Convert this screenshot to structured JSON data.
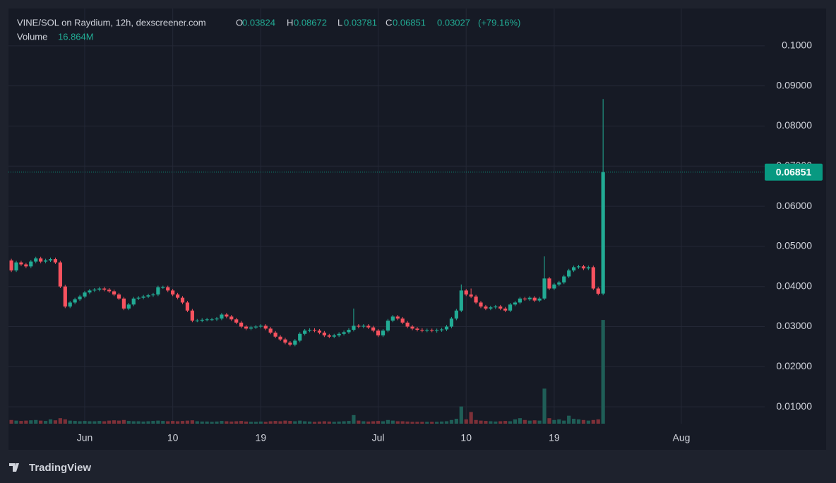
{
  "chart_data": {
    "type": "candlestick",
    "title": "VINE/SOL on Raydium, 12h, dexscreener.com",
    "ohlc_labels": {
      "open": "O",
      "high": "H",
      "low": "L",
      "close": "C"
    },
    "change": 0.03027,
    "change_pct": {
      "value": 79.16,
      "label": "(+79.16%)"
    },
    "up_color": "#22ab94",
    "down_color": "#f7525f",
    "categories": [
      null,
      null,
      null,
      null,
      null,
      null,
      null,
      null,
      null,
      null,
      null,
      null,
      null,
      null,
      null,
      "Jun",
      null,
      null,
      null,
      null,
      null,
      null,
      null,
      null,
      null,
      null,
      null,
      null,
      null,
      null,
      null,
      null,
      null,
      "10",
      null,
      null,
      null,
      null,
      null,
      null,
      null,
      null,
      null,
      null,
      null,
      null,
      null,
      null,
      null,
      null,
      null,
      "19",
      null,
      null,
      null,
      null,
      null,
      null,
      null,
      null,
      null,
      null,
      null,
      null,
      null,
      null,
      null,
      null,
      null,
      null,
      null,
      null,
      null,
      null,
      null,
      "Jul",
      null,
      null,
      null,
      null,
      null,
      null,
      null,
      null,
      null,
      null,
      null,
      null,
      null,
      null,
      null,
      null,
      null,
      "10",
      null,
      null,
      null,
      null,
      null,
      null,
      null,
      null,
      null,
      null,
      null,
      null,
      null,
      null,
      null,
      null,
      null,
      "19",
      null,
      null,
      null,
      null,
      null,
      null,
      null,
      null,
      null,
      null,
      null,
      null,
      null,
      null,
      null,
      null,
      null,
      null,
      null,
      null,
      null,
      null,
      null,
      null,
      null,
      "Aug"
    ],
    "open": [
      0.0465,
      0.044,
      0.046,
      0.0455,
      0.045,
      0.0462,
      0.047,
      0.0462,
      0.0465,
      0.0468,
      0.046,
      0.04,
      0.035,
      0.036,
      0.0368,
      0.0375,
      0.0385,
      0.039,
      0.0392,
      0.0395,
      0.0392,
      0.0388,
      0.038,
      0.037,
      0.0345,
      0.0355,
      0.037,
      0.0372,
      0.0375,
      0.0378,
      0.038,
      0.0398,
      0.0398,
      0.039,
      0.038,
      0.0372,
      0.036,
      0.034,
      0.0315,
      0.0315,
      0.0317,
      0.0318,
      0.0318,
      0.032,
      0.033,
      0.0325,
      0.0318,
      0.031,
      0.03,
      0.0295,
      0.0298,
      0.03,
      0.0302,
      0.0295,
      0.0285,
      0.0275,
      0.0268,
      0.026,
      0.0255,
      0.0265,
      0.0282,
      0.029,
      0.0292,
      0.029,
      0.0285,
      0.0278,
      0.0275,
      0.0278,
      0.0282,
      0.0286,
      0.0292,
      0.0302,
      0.03,
      0.0302,
      0.0298,
      0.029,
      0.0278,
      0.029,
      0.0315,
      0.0325,
      0.032,
      0.031,
      0.03,
      0.0295,
      0.0292,
      0.029,
      0.0291,
      0.029,
      0.0291,
      0.0293,
      0.03,
      0.032,
      0.034,
      0.039,
      0.038,
      0.0375,
      0.036,
      0.035,
      0.0345,
      0.0348,
      0.035,
      0.0345,
      0.034,
      0.0355,
      0.036,
      0.037,
      0.0368,
      0.0372,
      0.0365,
      0.037,
      0.042,
      0.0395,
      0.0405,
      0.041,
      0.0425,
      0.044,
      0.0448,
      0.045,
      0.0445,
      0.0448,
      0.0395,
      0.03824,
      null,
      null,
      null,
      null,
      null,
      null,
      null,
      null,
      null,
      null,
      null,
      null,
      null,
      null,
      null,
      null
    ],
    "high": [
      0.0469,
      0.0464,
      0.0464,
      0.0459,
      0.0466,
      0.0474,
      0.0474,
      0.0469,
      0.0472,
      0.0472,
      0.0464,
      0.0404,
      0.0364,
      0.0372,
      0.0379,
      0.0389,
      0.0394,
      0.0396,
      0.0399,
      0.0399,
      0.0396,
      0.0392,
      0.0384,
      0.0374,
      0.0359,
      0.0374,
      0.0376,
      0.0379,
      0.0382,
      0.0384,
      0.0402,
      0.0402,
      0.0402,
      0.0394,
      0.0384,
      0.0376,
      0.0364,
      0.0344,
      0.0319,
      0.0321,
      0.0322,
      0.0322,
      0.0324,
      0.0334,
      0.0334,
      0.0329,
      0.0322,
      0.0314,
      0.0304,
      0.0302,
      0.0304,
      0.0306,
      0.0306,
      0.0299,
      0.0289,
      0.0279,
      0.0272,
      0.0264,
      0.0269,
      0.0286,
      0.0294,
      0.0296,
      0.0296,
      0.0294,
      0.0289,
      0.0282,
      0.0282,
      0.0286,
      0.029,
      0.0296,
      0.0345,
      0.0306,
      0.0306,
      0.0306,
      0.0302,
      0.0294,
      0.0294,
      0.0319,
      0.0329,
      0.0329,
      0.0324,
      0.0314,
      0.0304,
      0.0299,
      0.0296,
      0.0295,
      0.0295,
      0.0295,
      0.0297,
      0.0304,
      0.0324,
      0.0344,
      0.0405,
      0.0394,
      0.0395,
      0.0379,
      0.0364,
      0.0354,
      0.0352,
      0.0354,
      0.0354,
      0.0349,
      0.0359,
      0.0364,
      0.0374,
      0.0374,
      0.0376,
      0.0376,
      0.0374,
      0.0475,
      0.0424,
      0.0409,
      0.0414,
      0.0429,
      0.0444,
      0.0452,
      0.0454,
      0.0454,
      0.0452,
      0.0452,
      0.0399,
      0.08672,
      null,
      null,
      null,
      null,
      null,
      null,
      null,
      null,
      null,
      null,
      null,
      null,
      null,
      null,
      null,
      null
    ],
    "low": [
      0.0436,
      0.0436,
      0.0451,
      0.0446,
      0.0446,
      0.0458,
      0.0458,
      0.0458,
      0.0461,
      0.0456,
      0.0396,
      0.0346,
      0.0346,
      0.0356,
      0.0364,
      0.0371,
      0.0381,
      0.0386,
      0.0388,
      0.0388,
      0.0384,
      0.0376,
      0.0366,
      0.0341,
      0.0341,
      0.0351,
      0.0366,
      0.0368,
      0.0371,
      0.0374,
      0.0376,
      0.0394,
      0.0386,
      0.0376,
      0.0368,
      0.0356,
      0.0336,
      0.0311,
      0.0311,
      0.0311,
      0.0313,
      0.0314,
      0.0314,
      0.0316,
      0.0321,
      0.0314,
      0.0306,
      0.0296,
      0.0291,
      0.0291,
      0.0294,
      0.0296,
      0.0291,
      0.0281,
      0.0271,
      0.0264,
      0.0256,
      0.0251,
      0.0251,
      0.0261,
      0.0278,
      0.0286,
      0.0286,
      0.0281,
      0.0274,
      0.0271,
      0.0271,
      0.0274,
      0.0278,
      0.0282,
      0.0288,
      0.0296,
      0.0296,
      0.0294,
      0.0286,
      0.0274,
      0.0274,
      0.0286,
      0.0311,
      0.0316,
      0.0306,
      0.0296,
      0.0291,
      0.0288,
      0.0286,
      0.0286,
      0.0286,
      0.0285,
      0.0287,
      0.0289,
      0.0296,
      0.0316,
      0.0336,
      0.0376,
      0.0371,
      0.0356,
      0.0346,
      0.0341,
      0.0341,
      0.0344,
      0.0341,
      0.0336,
      0.0336,
      0.0351,
      0.0356,
      0.0364,
      0.0364,
      0.0361,
      0.0361,
      0.0366,
      0.0391,
      0.0391,
      0.0401,
      0.0406,
      0.0421,
      0.0436,
      0.0444,
      0.0441,
      0.0441,
      0.0391,
      0.0378,
      0.03781,
      null,
      null,
      null,
      null,
      null,
      null,
      null,
      null,
      null,
      null,
      null,
      null,
      null,
      null,
      null,
      null
    ],
    "close": [
      0.044,
      0.046,
      0.0455,
      0.045,
      0.0462,
      0.047,
      0.0462,
      0.0465,
      0.0468,
      0.046,
      0.04,
      0.035,
      0.036,
      0.0368,
      0.0375,
      0.0385,
      0.039,
      0.0392,
      0.0395,
      0.0392,
      0.0388,
      0.038,
      0.037,
      0.0345,
      0.0355,
      0.037,
      0.0372,
      0.0375,
      0.0378,
      0.038,
      0.0398,
      0.0398,
      0.039,
      0.038,
      0.0372,
      0.036,
      0.034,
      0.0315,
      0.0315,
      0.0317,
      0.0318,
      0.0318,
      0.032,
      0.033,
      0.0325,
      0.0318,
      0.031,
      0.03,
      0.0295,
      0.0298,
      0.03,
      0.0302,
      0.0295,
      0.0285,
      0.0275,
      0.0268,
      0.026,
      0.0255,
      0.0265,
      0.0282,
      0.029,
      0.0292,
      0.029,
      0.0285,
      0.0278,
      0.0275,
      0.0278,
      0.0282,
      0.0286,
      0.0292,
      0.0302,
      0.03,
      0.0302,
      0.0298,
      0.029,
      0.0278,
      0.029,
      0.0315,
      0.0325,
      0.032,
      0.031,
      0.03,
      0.0295,
      0.0292,
      0.029,
      0.0291,
      0.029,
      0.0291,
      0.0293,
      0.03,
      0.032,
      0.034,
      0.039,
      0.038,
      0.0375,
      0.036,
      0.035,
      0.0345,
      0.0348,
      0.035,
      0.0345,
      0.034,
      0.0355,
      0.036,
      0.037,
      0.0368,
      0.0372,
      0.0365,
      0.037,
      0.042,
      0.0395,
      0.0405,
      0.041,
      0.0425,
      0.044,
      0.0448,
      0.045,
      0.0445,
      0.0448,
      0.0395,
      0.0382,
      0.06851,
      null,
      null,
      null,
      null,
      null,
      null,
      null,
      null,
      null,
      null,
      null,
      null,
      null,
      null,
      null,
      null
    ],
    "volume": {
      "name": "Volume",
      "axis": "y2",
      "last_value_label": "16.864M",
      "up_color": "#1f5e57",
      "down_color": "#7d3038",
      "values": [
        600000,
        500000,
        450000,
        500000,
        550000,
        600000,
        500000,
        450000,
        700000,
        550000,
        900000,
        700000,
        500000,
        450000,
        400000,
        450000,
        400000,
        400000,
        450000,
        400000,
        500000,
        550000,
        500000,
        600000,
        450000,
        400000,
        400000,
        350000,
        400000,
        450000,
        500000,
        450000,
        400000,
        450000,
        400000,
        450000,
        500000,
        550000,
        400000,
        350000,
        350000,
        300000,
        350000,
        450000,
        400000,
        350000,
        400000,
        450000,
        350000,
        300000,
        300000,
        350000,
        300000,
        400000,
        450000,
        400000,
        500000,
        450000,
        400000,
        500000,
        400000,
        350000,
        300000,
        350000,
        400000,
        350000,
        300000,
        350000,
        400000,
        450000,
        1400000,
        500000,
        400000,
        350000,
        400000,
        450000,
        400000,
        600000,
        500000,
        400000,
        400000,
        350000,
        300000,
        300000,
        300000,
        300000,
        300000,
        300000,
        350000,
        400000,
        600000,
        800000,
        2800000,
        700000,
        1900000,
        600000,
        500000,
        450000,
        400000,
        350000,
        400000,
        450000,
        400000,
        700000,
        900000,
        600000,
        500000,
        550000,
        500000,
        5700000,
        900000,
        600000,
        700000,
        500000,
        1300000,
        800000,
        700000,
        600000,
        500000,
        600000,
        700000,
        16864000,
        null,
        null,
        null,
        null,
        null,
        null,
        null,
        null,
        null,
        null,
        null,
        null,
        null,
        null,
        null,
        null
      ]
    },
    "ylim": [
      0.0058,
      0.1093
    ],
    "yticks": [
      {
        "value": 0.1,
        "label": "0.1000"
      },
      {
        "value": 0.09,
        "label": "0.09000"
      },
      {
        "value": 0.08,
        "label": "0.08000"
      },
      {
        "value": 0.07,
        "label": "0.07000"
      },
      {
        "value": 0.06,
        "label": "0.06000"
      },
      {
        "value": 0.05,
        "label": "0.05000"
      },
      {
        "value": 0.04,
        "label": "0.04000"
      },
      {
        "value": 0.03,
        "label": "0.03000"
      },
      {
        "value": 0.02,
        "label": "0.02000"
      },
      {
        "value": 0.01,
        "label": "0.01000"
      }
    ],
    "y2lim": [
      0,
      67500000
    ],
    "grid": true,
    "last_price_line": true,
    "last_price_color": "#089981"
  },
  "footer": {
    "brand": "TradingView"
  }
}
